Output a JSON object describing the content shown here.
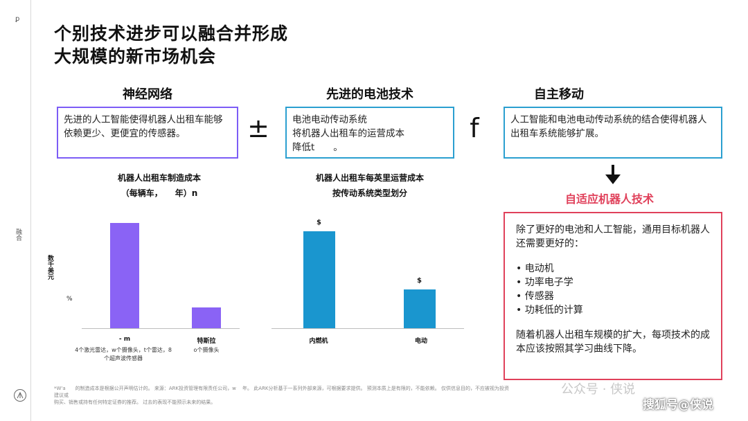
{
  "sidebar": {
    "top_mark": "ꝑ",
    "mid_label": "融合",
    "logo_mark": "ARK"
  },
  "title": {
    "line1": "个别技术进步可以融合并形成",
    "line2": "大规模的新市场机会"
  },
  "columns": [
    {
      "heading": "神经网络",
      "text": "先进的人工智能使得机器人出租车能够依赖更少、更便宜的传感器。",
      "border_color": "#7c5cf6"
    },
    {
      "heading": "先进的电池技术",
      "text": "电池电动传动系统\n将机器人出租车的运营成本\n降低t　　。",
      "border_color": "#2a9fd0"
    },
    {
      "heading": "自主移动",
      "text": "人工智能和电池电动传动系统的结合使得机器人出租车系统能够扩展。",
      "border_color": "#2a9fd0"
    }
  ],
  "operators": {
    "plus_minus": "±",
    "f": "f"
  },
  "arrow": "down-arrow-icon",
  "adaptive": {
    "heading": "自适应机器人技术",
    "heading_color": "#e0405a",
    "border_color": "#e0405a",
    "intro": "除了更好的电池和人工智能，通用目标机器人还需要更好的：",
    "bullets": [
      "• 电动机",
      "• 功率电子学",
      "•  传感器",
      "• 功耗低的计算"
    ],
    "outro": "随着机器人出租车规模的扩大，每项技术的成本应该按照其学习曲线下降。"
  },
  "chart_data": [
    {
      "type": "bar",
      "title": "机器人出租车制造成本",
      "subtitle": "（每辆车，　　年）n",
      "ylabel": "数千美元",
      "y_mark": "%",
      "categories": [
        "- m",
        "特斯拉"
      ],
      "category_notes": [
        "4个激光雷达，w个摄像头，t个雷达，8个超声波传感器",
        "o个摄像头"
      ],
      "values": [
        100,
        20
      ],
      "color": "#8a63f5"
    },
    {
      "type": "bar",
      "title": "机器人出租车每英里运营成本",
      "subtitle": "按传动系统类型划分",
      "categories": [
        "内燃机",
        "电动"
      ],
      "value_labels": [
        "$",
        "$"
      ],
      "values": [
        100,
        40
      ],
      "color": "#1a96cf"
    }
  ],
  "footer": {
    "line1": "*W'a　　的制造成本是根据公开声明估计的。 来源：ARK投资管理有限责任公司，w　 年。 此ARK分析基于一系列外部来源，可根据要求提供。 预测本质上是有限的，不能依赖。 仅供信息目的，不应被视为投资建议或",
    "line2": "购买、销售或持有任何特定证券的推荐。 过去的表现不能预示未来的结果。"
  },
  "watermarks": {
    "wechat": "公众号 · 侠说",
    "sohu": "搜狐号@侠说"
  }
}
